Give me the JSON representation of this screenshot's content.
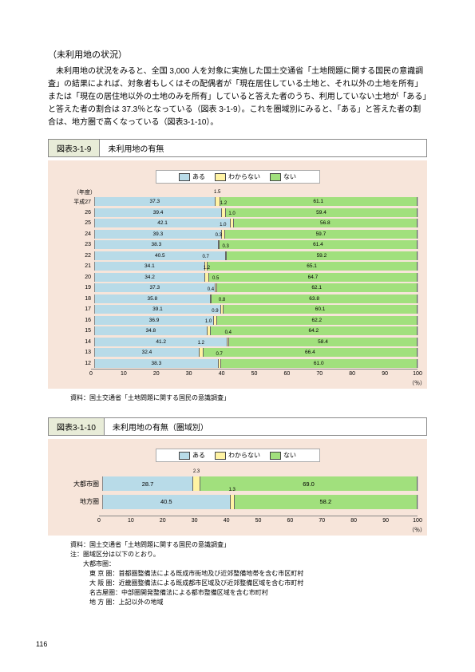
{
  "heading": "（未利用地の状況）",
  "body_text": "未利用地の状況をみると、全国 3,000 人を対象に実施した国土交通省「土地問題に関する国民の意識調査」の結果によれば、対象者もしくはその配偶者が「現在居住している土地と、それ以外の土地を所有」または「現在の居住地以外の土地のみを所有」していると答えた者のうち、利用していない土地が「ある」と答えた者の割合は 37.3％となっている（図表 3-1-9）。これを圏域別にみると、「ある」と答えた者の割合は、地方圏で高くなっている（図表3-1-10）。",
  "chart1": {
    "title_num": "図表3-1-9",
    "title_label": "未利用地の有無",
    "legend": [
      "ある",
      "わからない",
      "ない"
    ],
    "colors": {
      "aru": "#b8dbe8",
      "wakaranai": "#fff3a3",
      "nai": "#a1e07d"
    },
    "axis_title": "（年度）",
    "rows": [
      {
        "label": "平成27",
        "v": [
          37.3,
          1.5,
          61.1
        ]
      },
      {
        "label": "26",
        "v": [
          39.4,
          1.2,
          59.4
        ]
      },
      {
        "label": "25",
        "v": [
          42.1,
          1.0,
          56.8
        ]
      },
      {
        "label": "24",
        "v": [
          39.3,
          1.0,
          59.7
        ]
      },
      {
        "label": "23",
        "v": [
          38.3,
          0.3,
          61.4
        ]
      },
      {
        "label": "22",
        "v": [
          40.5,
          0.3,
          59.2
        ]
      },
      {
        "label": "21",
        "v": [
          34.1,
          0.7,
          65.1
        ]
      },
      {
        "label": "20",
        "v": [
          34.2,
          1.2,
          64.7
        ]
      },
      {
        "label": "19",
        "v": [
          37.3,
          0.5,
          62.1
        ]
      },
      {
        "label": "18",
        "v": [
          35.8,
          0.4,
          63.8
        ]
      },
      {
        "label": "17",
        "v": [
          39.1,
          0.8,
          60.1
        ]
      },
      {
        "label": "16",
        "v": [
          36.9,
          0.9,
          62.2
        ]
      },
      {
        "label": "15",
        "v": [
          34.8,
          1.0,
          64.2
        ]
      },
      {
        "label": "14",
        "v": [
          41.2,
          0.4,
          58.4
        ]
      },
      {
        "label": "13",
        "v": [
          32.4,
          1.2,
          66.4
        ]
      },
      {
        "label": "12",
        "v": [
          38.3,
          0.7,
          61.0
        ]
      }
    ],
    "xticks": [
      0,
      10,
      20,
      30,
      40,
      50,
      60,
      70,
      80,
      90,
      100
    ],
    "xunit": "（％）",
    "source": "資料：国土交通省「土地問題に関する国民の意識調査」"
  },
  "chart2": {
    "title_num": "図表3-1-10",
    "title_label": "未利用地の有無（圏域別）",
    "legend": [
      "ある",
      "わからない",
      "ない"
    ],
    "colors": {
      "aru": "#b8dbe8",
      "wakaranai": "#fff3a3",
      "nai": "#a1e07d"
    },
    "rows": [
      {
        "label": "大都市圏",
        "v": [
          28.7,
          2.3,
          69.0
        ]
      },
      {
        "label": "地方圏",
        "v": [
          40.5,
          1.3,
          58.2
        ]
      }
    ],
    "xticks": [
      0,
      10,
      20,
      30,
      40,
      50,
      60,
      70,
      80,
      90,
      100
    ],
    "xunit": "（％）",
    "source_lines": [
      "資料：国土交通省「土地問題に関する国民の意識調査」",
      "注：圏域区分は以下のとおり。",
      "　　大都市圏：",
      "　　　東 京 圏：首都圏整備法による既成市街地及び近郊整備地帯を含む市区町村",
      "　　　大 阪 圏：近畿圏整備法による既成都市区域及び近郊整備区域を含む市町村",
      "　　　名古屋圏：中部圏開発整備法による都市整備区域を含む市町村",
      "　　　地 方 圏：上記以外の地域"
    ]
  },
  "page_number": "116"
}
